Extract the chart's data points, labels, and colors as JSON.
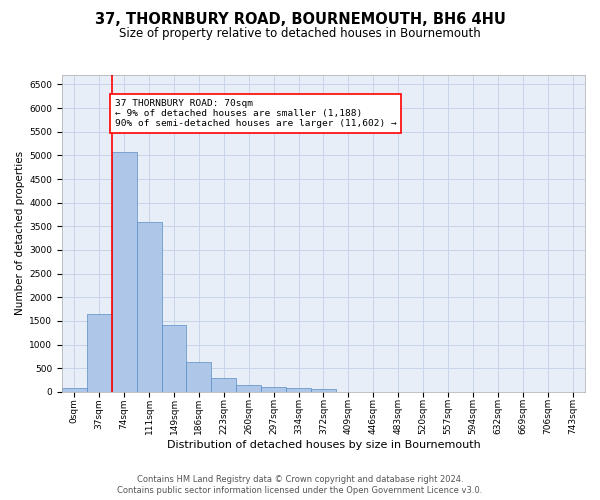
{
  "title": "37, THORNBURY ROAD, BOURNEMOUTH, BH6 4HU",
  "subtitle": "Size of property relative to detached houses in Bournemouth",
  "xlabel": "Distribution of detached houses by size in Bournemouth",
  "ylabel": "Number of detached properties",
  "footer1": "Contains HM Land Registry data © Crown copyright and database right 2024.",
  "footer2": "Contains public sector information licensed under the Open Government Licence v3.0.",
  "annotation_title": "37 THORNBURY ROAD: 70sqm",
  "annotation_line1": "← 9% of detached houses are smaller (1,188)",
  "annotation_line2": "90% of semi-detached houses are larger (11,602) →",
  "bar_values": [
    75,
    1650,
    5075,
    3600,
    1420,
    625,
    290,
    145,
    110,
    80,
    60,
    0,
    0,
    0,
    0,
    0,
    0,
    0,
    0,
    0,
    0
  ],
  "bar_labels": [
    "0sqm",
    "37sqm",
    "74sqm",
    "111sqm",
    "149sqm",
    "186sqm",
    "223sqm",
    "260sqm",
    "297sqm",
    "334sqm",
    "372sqm",
    "409sqm",
    "446sqm",
    "483sqm",
    "520sqm",
    "557sqm",
    "594sqm",
    "632sqm",
    "669sqm",
    "706sqm",
    "743sqm"
  ],
  "bar_color": "#aec6e8",
  "bar_edge_color": "#5b8ec4",
  "vline_x": 1.5,
  "vline_color": "red",
  "ylim": [
    0,
    6700
  ],
  "yticks": [
    0,
    500,
    1000,
    1500,
    2000,
    2500,
    3000,
    3500,
    4000,
    4500,
    5000,
    5500,
    6000,
    6500
  ],
  "grid_color": "#c8d4e8",
  "bg_color": "#e8eef8",
  "title_fontsize": 10.5,
  "subtitle_fontsize": 8.5,
  "xlabel_fontsize": 8.0,
  "ylabel_fontsize": 7.5,
  "tick_fontsize": 6.5,
  "annotation_fontsize": 6.8,
  "footer_fontsize": 6.0
}
